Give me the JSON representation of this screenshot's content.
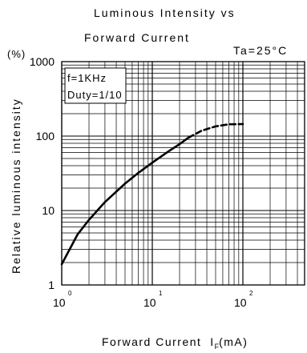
{
  "chart_data": {
    "type": "line",
    "title_line1": "Luminous Intensity vs",
    "title_line2": "Forward Current",
    "condition": "Ta=25°C",
    "inset_lines": [
      "f=1KHz",
      "Duty=1/10"
    ],
    "ylabel": "Relative luminous intensity",
    "yunit": "(%)",
    "xlabel_main": "Forward Current",
    "xlabel_symbol": "I",
    "xlabel_sub": "F",
    "xlabel_unit": "(mA)",
    "x_scale": "log",
    "y_scale": "log",
    "xlim": [
      1,
      400
    ],
    "ylim": [
      1,
      1000
    ],
    "grid": true,
    "y_ticks": [
      {
        "value": 1,
        "label": "1"
      },
      {
        "value": 10,
        "label": "10"
      },
      {
        "value": 100,
        "label": "100"
      },
      {
        "value": 1000,
        "label": "1000"
      }
    ],
    "x_ticks": [
      {
        "value": 1,
        "base": "10",
        "exp": "0"
      },
      {
        "value": 10,
        "base": "10",
        "exp": "1"
      },
      {
        "value": 100,
        "base": "10",
        "exp": "2"
      }
    ],
    "series": [
      {
        "style": "solid",
        "x": [
          1,
          1.5,
          2,
          3,
          5,
          7,
          10,
          15,
          20,
          25
        ],
        "y": [
          1.9,
          4.8,
          7.5,
          13,
          23,
          32,
          44,
          62,
          78,
          95
        ]
      },
      {
        "style": "dashed",
        "x": [
          25,
          35,
          50,
          70,
          100
        ],
        "y": [
          95,
          118,
          135,
          144,
          145
        ]
      }
    ]
  }
}
